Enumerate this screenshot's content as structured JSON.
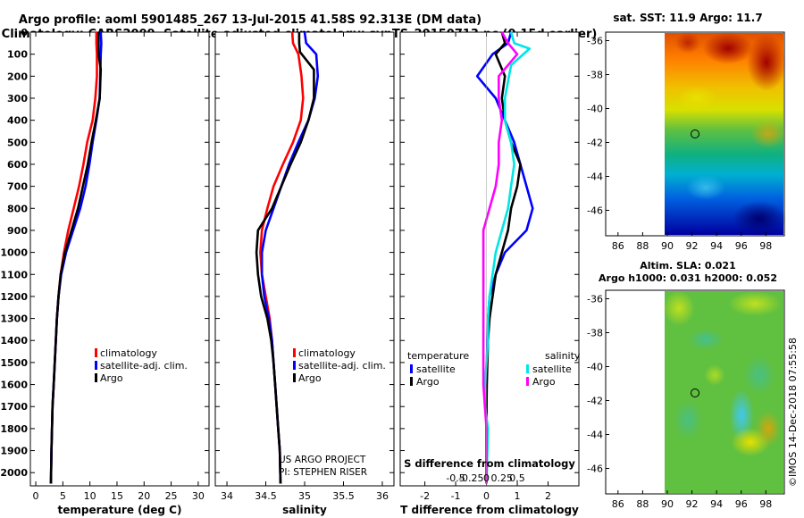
{
  "title_line1": "Argo profile: aoml 5901485_267 13-Jul-2015 41.58S 92.313E (DM data)",
  "title_line2": "Climatology: CARS2009. Satellite-adjusted climatology: synTS_20150713.nc (0.15d earlier)",
  "side_text": "©IMOS 14-Dec-2018 07:55:58",
  "colors": {
    "climatology": "#ff0000",
    "satellite": "#0000ff",
    "argo": "#000000",
    "sat_salinity": "#00e5e5",
    "salinity": "#ff00ff"
  },
  "chart_data": [
    {
      "type": "line",
      "id": "temperature",
      "xlabel": "temperature (deg C)",
      "xlim": [
        -1,
        32
      ],
      "ylim": [
        2060,
        0
      ],
      "xticks": [
        0,
        5,
        10,
        15,
        20,
        25,
        30
      ],
      "yticks": [
        0,
        100,
        200,
        300,
        400,
        500,
        600,
        700,
        800,
        900,
        1000,
        1100,
        1200,
        1300,
        1400,
        1500,
        1600,
        1700,
        1800,
        1900,
        2000
      ],
      "legend": [
        "climatology",
        "satellite-adj. clim.",
        "Argo"
      ],
      "series": [
        {
          "name": "climatology",
          "color": "#ff0000",
          "x": [
            11.2,
            11.2,
            11.3,
            11.3,
            11.0,
            10.5,
            9.5,
            8.8,
            8.0,
            7.0,
            6.0,
            5.2,
            4.6,
            4.2,
            3.9,
            3.7,
            3.5,
            3.3,
            3.1,
            3.0,
            2.9,
            2.8
          ],
          "y": [
            0,
            50,
            100,
            200,
            300,
            400,
            500,
            600,
            700,
            800,
            900,
            1000,
            1100,
            1200,
            1300,
            1400,
            1500,
            1600,
            1700,
            1800,
            1900,
            2050
          ]
        },
        {
          "name": "satellite-adj. clim.",
          "color": "#0000ff",
          "x": [
            12.0,
            12.1,
            12.0,
            11.9,
            11.8,
            11.2,
            10.5,
            9.9,
            9.2,
            8.2,
            6.9,
            5.6,
            4.7,
            4.2,
            3.9,
            3.7,
            3.5,
            3.3,
            3.1,
            3.0,
            2.9,
            2.8
          ],
          "y": [
            0,
            50,
            100,
            200,
            300,
            400,
            500,
            600,
            700,
            800,
            900,
            1000,
            1100,
            1200,
            1300,
            1400,
            1500,
            1600,
            1700,
            1800,
            1900,
            2050
          ]
        },
        {
          "name": "Argo",
          "color": "#000000",
          "x": [
            11.6,
            11.6,
            11.6,
            12.0,
            11.8,
            11.1,
            10.3,
            9.6,
            8.7,
            7.8,
            6.6,
            5.4,
            4.6,
            4.2,
            3.9,
            3.7,
            3.5,
            3.3,
            3.1,
            3.0,
            2.9,
            2.8
          ],
          "y": [
            0,
            50,
            100,
            170,
            300,
            400,
            500,
            600,
            700,
            800,
            900,
            1000,
            1100,
            1200,
            1300,
            1400,
            1500,
            1600,
            1700,
            1800,
            1900,
            2050
          ]
        }
      ]
    },
    {
      "type": "line",
      "id": "salinity",
      "xlabel": "salinity",
      "xlim": [
        33.85,
        36.15
      ],
      "ylim": [
        2060,
        0
      ],
      "xticks": [
        34,
        34.5,
        35,
        35.5,
        36
      ],
      "legend": [
        "climatology",
        "satellite-adj. clim.",
        "Argo"
      ],
      "annotations": [
        "US ARGO PROJECT",
        "PI: STEPHEN RISER"
      ],
      "series": [
        {
          "name": "climatology",
          "color": "#ff0000",
          "x": [
            34.84,
            34.85,
            34.92,
            34.96,
            34.98,
            34.95,
            34.85,
            34.72,
            34.6,
            34.52,
            34.45,
            34.43,
            34.45,
            34.5,
            34.55,
            34.58,
            34.6,
            34.62,
            34.64,
            34.66,
            34.68,
            34.69
          ],
          "y": [
            0,
            50,
            100,
            200,
            300,
            400,
            500,
            600,
            700,
            800,
            900,
            1000,
            1100,
            1200,
            1300,
            1400,
            1500,
            1600,
            1700,
            1800,
            1900,
            2050
          ]
        },
        {
          "name": "satellite-adj. clim.",
          "color": "#0000ff",
          "x": [
            35.0,
            35.02,
            35.15,
            35.17,
            35.13,
            35.05,
            34.92,
            34.8,
            34.7,
            34.6,
            34.5,
            34.45,
            34.45,
            34.48,
            34.54,
            34.58,
            34.6,
            34.62,
            34.64,
            34.66,
            34.68,
            34.69
          ],
          "y": [
            0,
            50,
            100,
            200,
            300,
            400,
            500,
            600,
            700,
            800,
            900,
            1000,
            1100,
            1200,
            1300,
            1400,
            1500,
            1600,
            1700,
            1800,
            1900,
            2050
          ]
        },
        {
          "name": "Argo",
          "color": "#000000",
          "x": [
            34.93,
            34.93,
            34.94,
            35.12,
            35.12,
            35.05,
            34.95,
            34.82,
            34.7,
            34.58,
            34.4,
            34.38,
            34.4,
            34.44,
            34.52,
            34.57,
            34.6,
            34.62,
            34.64,
            34.66,
            34.68,
            34.69
          ],
          "y": [
            0,
            50,
            90,
            170,
            300,
            400,
            500,
            600,
            700,
            800,
            900,
            1000,
            1100,
            1200,
            1300,
            1400,
            1500,
            1600,
            1700,
            1800,
            1900,
            2050
          ]
        }
      ]
    },
    {
      "type": "line",
      "id": "difference",
      "xlabel": "T difference from climatology",
      "xlabel2": "S difference from climatology",
      "xlim": [
        -2.8,
        3.0
      ],
      "ylim": [
        2060,
        0
      ],
      "xticks": [
        -2,
        -1,
        0,
        1,
        2
      ],
      "xticks_salinity": [
        {
          "value": -1.0,
          "label": "-0.5"
        },
        {
          "value": -0.5,
          "label": "-0.25"
        },
        {
          "value": 0,
          "label": "0"
        },
        {
          "value": 0.5,
          "label": "0.25"
        },
        {
          "value": 1.0,
          "label": "0.5"
        }
      ],
      "legend_temperature_title": "temperature",
      "legend_salinity_title": "salinity",
      "legend_temperature": [
        "satellite",
        "Argo"
      ],
      "legend_salinity": [
        "satellite",
        "Argo"
      ],
      "series": [
        {
          "name": "T satellite",
          "color": "#0000ff",
          "x": [
            0.8,
            0.7,
            0.2,
            -0.3,
            0.3,
            0.6,
            0.9,
            1.1,
            1.3,
            1.5,
            1.3,
            0.6,
            0.3,
            0.1,
            0.05,
            0.03,
            0.01,
            0,
            0,
            0,
            0,
            0
          ],
          "y": [
            0,
            50,
            100,
            200,
            300,
            400,
            500,
            600,
            700,
            800,
            900,
            1000,
            1100,
            1200,
            1300,
            1400,
            1500,
            1600,
            1700,
            1800,
            1900,
            2050
          ]
        },
        {
          "name": "T Argo",
          "color": "#000000",
          "x": [
            0.5,
            0.6,
            0.3,
            0.6,
            0.5,
            0.6,
            0.8,
            1.1,
            1.0,
            0.8,
            0.7,
            0.5,
            0.3,
            0.2,
            0.1,
            0.05,
            0.03,
            0.01,
            0,
            0,
            0,
            0
          ],
          "y": [
            0,
            50,
            100,
            200,
            300,
            400,
            500,
            600,
            700,
            800,
            900,
            1000,
            1100,
            1200,
            1300,
            1400,
            1500,
            1600,
            1700,
            1800,
            1900,
            2050
          ]
        },
        {
          "name": "S satellite",
          "color": "#00e5e5",
          "x": [
            0.8,
            0.9,
            1.4,
            0.8,
            0.6,
            0.6,
            0.8,
            0.9,
            0.8,
            0.7,
            0.5,
            0.3,
            0.2,
            0.1,
            0.05,
            0.05,
            0,
            -0.05,
            -0.05,
            0.05,
            0.03,
            0
          ],
          "y": [
            0,
            50,
            75,
            150,
            300,
            400,
            500,
            600,
            700,
            800,
            900,
            1000,
            1100,
            1200,
            1300,
            1400,
            1500,
            1600,
            1700,
            1800,
            1900,
            2050
          ]
        },
        {
          "name": "S Argo",
          "color": "#ff00ff",
          "x": [
            0.5,
            0.7,
            1.0,
            0.4,
            0.4,
            0.5,
            0.4,
            0.4,
            0.3,
            0.1,
            -0.1,
            -0.1,
            -0.1,
            -0.1,
            -0.1,
            -0.1,
            -0.1,
            -0.1,
            -0.05,
            0,
            0,
            0
          ],
          "y": [
            0,
            50,
            100,
            200,
            300,
            400,
            500,
            600,
            700,
            800,
            900,
            1000,
            1100,
            1200,
            1300,
            1400,
            1500,
            1600,
            1700,
            1800,
            1900,
            2050
          ]
        }
      ]
    },
    {
      "type": "heatmap",
      "id": "sst_map",
      "title": "sat. SST: 11.9 Argo: 11.7",
      "xlim": [
        85,
        99.5
      ],
      "ylim": [
        -47.5,
        -35.5
      ],
      "xticks": [
        86,
        88,
        90,
        92,
        94,
        96,
        98
      ],
      "yticks": [
        -36,
        -38,
        -40,
        -42,
        -44,
        -46
      ],
      "data_lon_range": [
        90,
        99.5
      ],
      "argo_position": {
        "lon": 92.313,
        "lat": -41.58
      }
    },
    {
      "type": "heatmap",
      "id": "sla_map",
      "title": "Altim. SLA: 0.021",
      "subtitle": "Argo h1000: 0.031 h2000: 0.052",
      "xlim": [
        85,
        99.5
      ],
      "ylim": [
        -47.5,
        -35.5
      ],
      "xticks": [
        86,
        88,
        90,
        92,
        94,
        96,
        98
      ],
      "yticks": [
        -36,
        -38,
        -40,
        -42,
        -44,
        -46
      ],
      "data_lon_range": [
        90,
        99.5
      ],
      "argo_position": {
        "lon": 92.313,
        "lat": -41.58
      }
    }
  ]
}
